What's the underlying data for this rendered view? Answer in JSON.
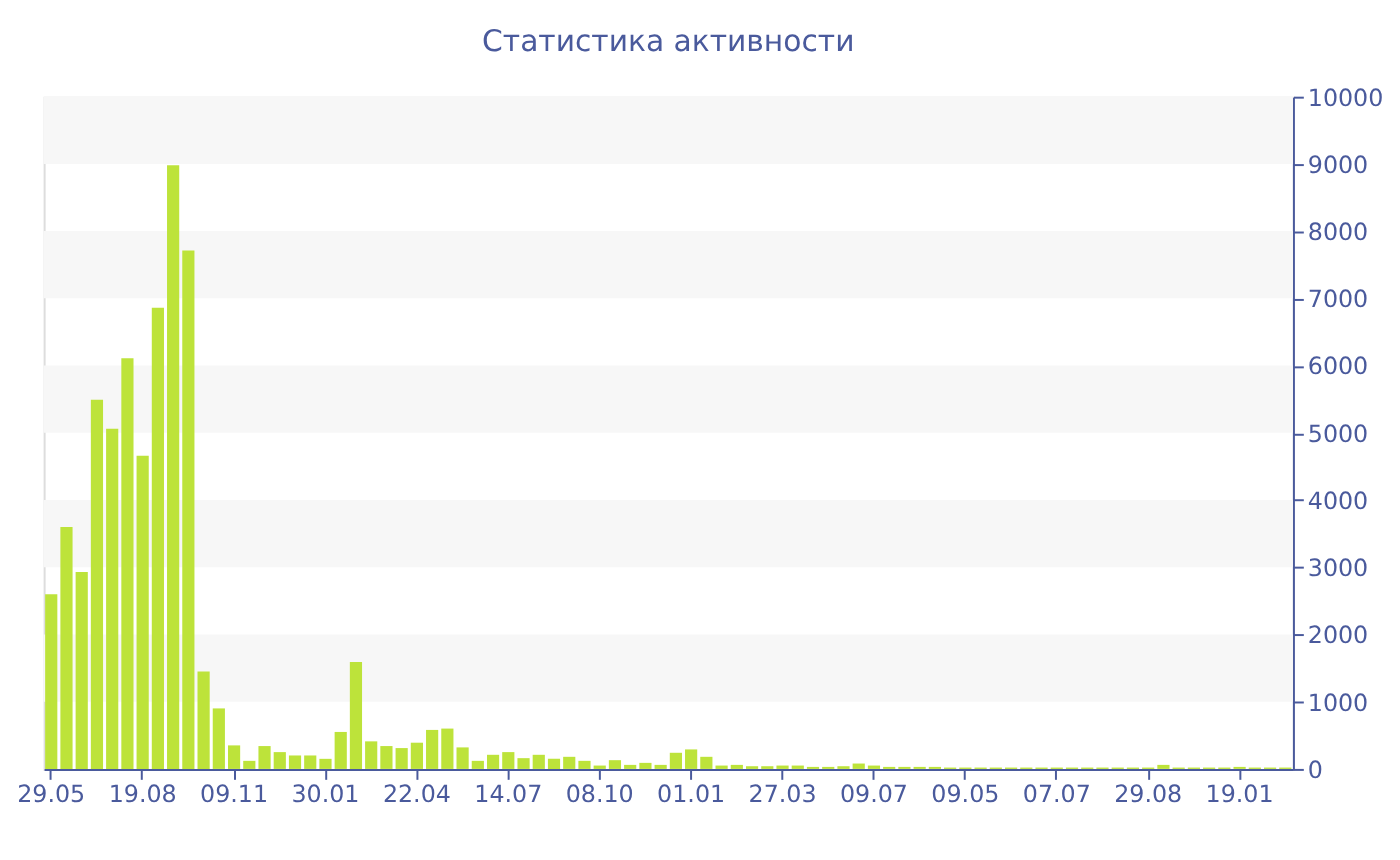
{
  "chart_data": {
    "type": "bar",
    "title": "Статистика активности",
    "categories": [
      "29.05",
      null,
      null,
      null,
      null,
      null,
      "19.08",
      null,
      null,
      null,
      null,
      null,
      "09.11",
      null,
      null,
      null,
      null,
      null,
      "30.01",
      null,
      null,
      null,
      null,
      null,
      "22.04",
      null,
      null,
      null,
      null,
      null,
      "14.07",
      null,
      null,
      null,
      null,
      null,
      "08.10",
      null,
      null,
      null,
      null,
      null,
      "01.01",
      null,
      null,
      null,
      null,
      null,
      "27.03",
      null,
      null,
      null,
      null,
      null,
      "09.07",
      null,
      null,
      null,
      null,
      null,
      "09.05",
      null,
      null,
      null,
      null,
      null,
      "07.07",
      null,
      null,
      null,
      null,
      null,
      "29.08",
      null,
      null,
      null,
      null,
      null,
      "19.01",
      null,
      null,
      null
    ],
    "values": [
      2600,
      3600,
      2930,
      5490,
      5060,
      6110,
      4660,
      6860,
      8980,
      7710,
      1450,
      900,
      350,
      120,
      340,
      250,
      200,
      200,
      150,
      550,
      1590,
      410,
      340,
      310,
      390,
      580,
      600,
      320,
      120,
      210,
      250,
      160,
      210,
      150,
      180,
      120,
      50,
      130,
      60,
      90,
      60,
      240,
      290,
      180,
      50,
      60,
      40,
      40,
      50,
      50,
      30,
      30,
      40,
      80,
      50,
      30,
      30,
      30,
      30,
      20,
      20,
      20,
      20,
      20,
      20,
      20,
      20,
      20,
      20,
      20,
      20,
      20,
      20,
      60,
      20,
      20,
      20,
      20,
      30,
      20,
      20,
      20
    ],
    "color": "#bde33a",
    "ylim": [
      0,
      10000
    ],
    "yticks": [
      0,
      1000,
      2000,
      3000,
      4000,
      5000,
      6000,
      7000,
      8000,
      9000,
      10000
    ],
    "bands": [
      {
        "axis": "y",
        "from": 1000,
        "to": 2000,
        "color": "#f7f7f7"
      },
      {
        "axis": "y",
        "from": 3000,
        "to": 4000,
        "color": "#f7f7f7"
      },
      {
        "axis": "y",
        "from": 5000,
        "to": 6000,
        "color": "#f7f7f7"
      },
      {
        "axis": "y",
        "from": 7000,
        "to": 8000,
        "color": "#f7f7f7"
      },
      {
        "axis": "y",
        "from": 9000,
        "to": 10000,
        "color": "#f7f7f7"
      }
    ]
  }
}
